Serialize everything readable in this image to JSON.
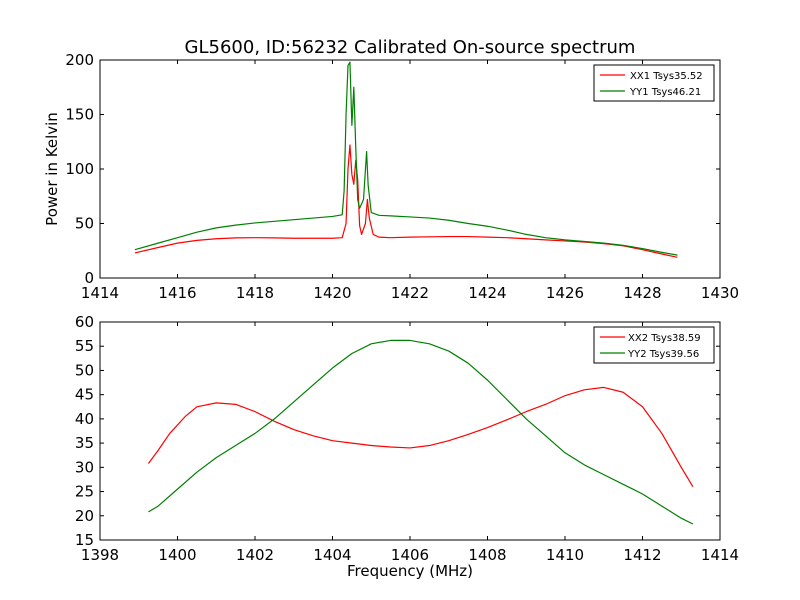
{
  "chart_data": [
    {
      "type": "line",
      "title": "GL5600, ID:56232 Calibrated On-source spectrum",
      "xlabel": "",
      "ylabel": "Power in Kelvin",
      "xlim": [
        1414,
        1430
      ],
      "ylim": [
        0,
        200
      ],
      "xticks": [
        1414,
        1416,
        1418,
        1420,
        1422,
        1424,
        1426,
        1428,
        1430
      ],
      "yticks": [
        0,
        50,
        100,
        150,
        200
      ],
      "legend_position": "top-right",
      "grid": false,
      "series": [
        {
          "name": "XX1 Tsys35.52",
          "color": "#ff0000",
          "points": [
            [
              1414.9,
              23
            ],
            [
              1415.5,
              28
            ],
            [
              1416.0,
              32
            ],
            [
              1416.5,
              34.5
            ],
            [
              1417.0,
              36
            ],
            [
              1417.5,
              36.8
            ],
            [
              1418.0,
              37
            ],
            [
              1418.5,
              36.8
            ],
            [
              1419.0,
              36.5
            ],
            [
              1419.5,
              36.5
            ],
            [
              1420.0,
              36.5
            ],
            [
              1420.25,
              37
            ],
            [
              1420.35,
              50
            ],
            [
              1420.4,
              100
            ],
            [
              1420.45,
              122
            ],
            [
              1420.5,
              95
            ],
            [
              1420.55,
              86
            ],
            [
              1420.6,
              108
            ],
            [
              1420.65,
              90
            ],
            [
              1420.7,
              48
            ],
            [
              1420.75,
              40
            ],
            [
              1420.85,
              50
            ],
            [
              1420.9,
              72
            ],
            [
              1420.95,
              55
            ],
            [
              1421.05,
              40
            ],
            [
              1421.2,
              37.5
            ],
            [
              1421.5,
              37
            ],
            [
              1422.0,
              37.5
            ],
            [
              1422.5,
              37.8
            ],
            [
              1423.0,
              38
            ],
            [
              1423.5,
              38
            ],
            [
              1424.0,
              37.5
            ],
            [
              1424.5,
              37
            ],
            [
              1425.0,
              36
            ],
            [
              1425.5,
              35
            ],
            [
              1426.0,
              34
            ],
            [
              1426.5,
              33
            ],
            [
              1427.0,
              31.5
            ],
            [
              1427.5,
              29.5
            ],
            [
              1428.0,
              26
            ],
            [
              1428.5,
              22
            ],
            [
              1428.9,
              19
            ]
          ]
        },
        {
          "name": "YY1 Tsys46.21",
          "color": "#008000",
          "points": [
            [
              1414.9,
              26
            ],
            [
              1415.5,
              32
            ],
            [
              1416.0,
              37
            ],
            [
              1416.5,
              42
            ],
            [
              1417.0,
              46
            ],
            [
              1417.5,
              48.5
            ],
            [
              1418.0,
              50.5
            ],
            [
              1418.5,
              52
            ],
            [
              1419.0,
              53.5
            ],
            [
              1419.5,
              55
            ],
            [
              1420.0,
              56.5
            ],
            [
              1420.25,
              58
            ],
            [
              1420.3,
              80
            ],
            [
              1420.35,
              150
            ],
            [
              1420.4,
              195
            ],
            [
              1420.45,
              198
            ],
            [
              1420.5,
              140
            ],
            [
              1420.55,
              175
            ],
            [
              1420.6,
              120
            ],
            [
              1420.65,
              72
            ],
            [
              1420.7,
              64
            ],
            [
              1420.8,
              72
            ],
            [
              1420.88,
              116
            ],
            [
              1420.92,
              85
            ],
            [
              1421.0,
              60
            ],
            [
              1421.2,
              57.5
            ],
            [
              1421.5,
              57
            ],
            [
              1422.0,
              56
            ],
            [
              1422.5,
              55
            ],
            [
              1423.0,
              53
            ],
            [
              1423.5,
              50
            ],
            [
              1424.0,
              47.5
            ],
            [
              1424.5,
              44
            ],
            [
              1425.0,
              40
            ],
            [
              1425.5,
              37
            ],
            [
              1426.0,
              35
            ],
            [
              1426.5,
              33.5
            ],
            [
              1427.0,
              32
            ],
            [
              1427.5,
              30
            ],
            [
              1428.0,
              27
            ],
            [
              1428.5,
              23.5
            ],
            [
              1428.9,
              21
            ]
          ]
        }
      ]
    },
    {
      "type": "line",
      "title": "",
      "xlabel": "Frequency (MHz)",
      "ylabel": "",
      "xlim": [
        1398,
        1414
      ],
      "ylim": [
        15,
        60
      ],
      "xticks": [
        1398,
        1400,
        1402,
        1404,
        1406,
        1408,
        1410,
        1412,
        1414
      ],
      "yticks": [
        15,
        20,
        25,
        30,
        35,
        40,
        45,
        50,
        55,
        60
      ],
      "legend_position": "top-right",
      "grid": false,
      "series": [
        {
          "name": "XX2 Tsys38.59",
          "color": "#ff0000",
          "points": [
            [
              1399.25,
              30.8
            ],
            [
              1399.5,
              33.5
            ],
            [
              1399.8,
              37
            ],
            [
              1400.2,
              40.5
            ],
            [
              1400.5,
              42.5
            ],
            [
              1401.0,
              43.3
            ],
            [
              1401.5,
              43
            ],
            [
              1402.0,
              41.5
            ],
            [
              1402.5,
              39.5
            ],
            [
              1403.0,
              37.8
            ],
            [
              1403.5,
              36.5
            ],
            [
              1404.0,
              35.5
            ],
            [
              1404.5,
              35
            ],
            [
              1405.0,
              34.5
            ],
            [
              1405.5,
              34.2
            ],
            [
              1406.0,
              34
            ],
            [
              1406.5,
              34.5
            ],
            [
              1407.0,
              35.5
            ],
            [
              1407.5,
              36.8
            ],
            [
              1408.0,
              38.2
            ],
            [
              1408.5,
              39.8
            ],
            [
              1409.0,
              41.5
            ],
            [
              1409.5,
              43
            ],
            [
              1410.0,
              44.8
            ],
            [
              1410.5,
              46
            ],
            [
              1411.0,
              46.5
            ],
            [
              1411.5,
              45.5
            ],
            [
              1412.0,
              42.5
            ],
            [
              1412.5,
              37
            ],
            [
              1413.0,
              30
            ],
            [
              1413.3,
              26
            ]
          ]
        },
        {
          "name": "YY2 Tsys39.56",
          "color": "#008000",
          "points": [
            [
              1399.25,
              20.8
            ],
            [
              1399.5,
              22
            ],
            [
              1400.0,
              25.5
            ],
            [
              1400.5,
              29
            ],
            [
              1401.0,
              32
            ],
            [
              1401.5,
              34.5
            ],
            [
              1402.0,
              37
            ],
            [
              1402.5,
              40
            ],
            [
              1403.0,
              43.5
            ],
            [
              1403.5,
              47
            ],
            [
              1404.0,
              50.5
            ],
            [
              1404.5,
              53.5
            ],
            [
              1405.0,
              55.5
            ],
            [
              1405.5,
              56.2
            ],
            [
              1406.0,
              56.2
            ],
            [
              1406.5,
              55.5
            ],
            [
              1407.0,
              54
            ],
            [
              1407.5,
              51.5
            ],
            [
              1408.0,
              48
            ],
            [
              1408.5,
              44
            ],
            [
              1409.0,
              40
            ],
            [
              1409.5,
              36.5
            ],
            [
              1410.0,
              33
            ],
            [
              1410.5,
              30.5
            ],
            [
              1411.0,
              28.5
            ],
            [
              1411.5,
              26.5
            ],
            [
              1412.0,
              24.5
            ],
            [
              1412.5,
              22
            ],
            [
              1413.0,
              19.5
            ],
            [
              1413.3,
              18.3
            ]
          ]
        }
      ]
    }
  ]
}
